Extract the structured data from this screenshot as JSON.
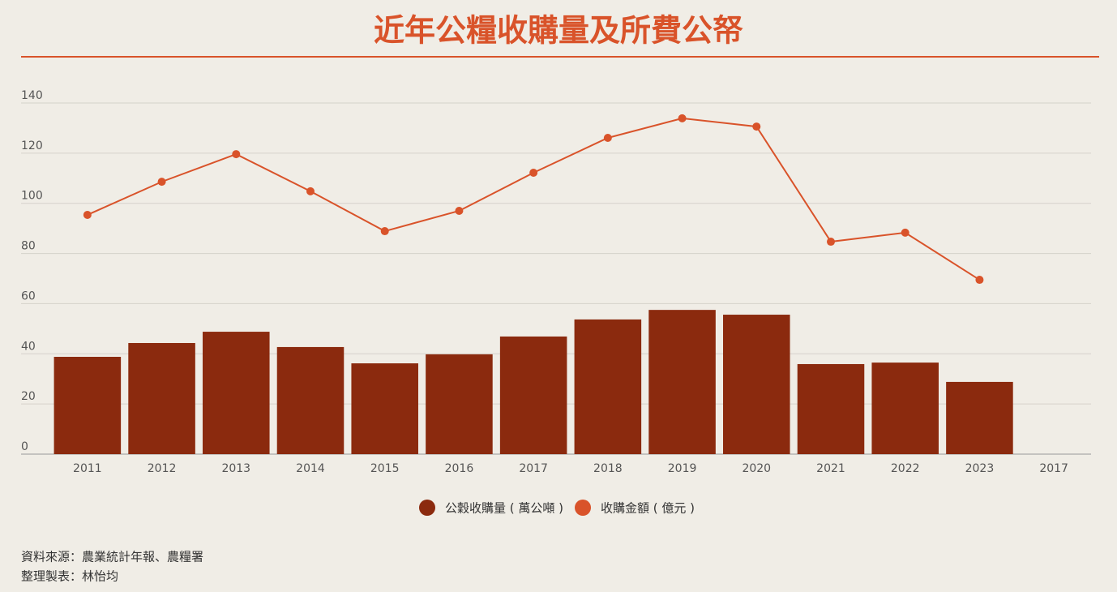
{
  "chart_data": {
    "type": "bar-line",
    "title": "近年公糧收購量及所費公帑",
    "categories": [
      "2011",
      "2012",
      "2013",
      "2014",
      "2015",
      "2016",
      "2017",
      "2018",
      "2019",
      "2020",
      "2021",
      "2022",
      "2023",
      "2017"
    ],
    "series": [
      {
        "name": "公穀收購量 ( 萬公噸 )",
        "type": "bar",
        "color": "#8b2a0e",
        "values": [
          38.8,
          44.3,
          48.8,
          42.7,
          36.2,
          39.8,
          46.9,
          53.7,
          57.5,
          55.6,
          35.9,
          36.5,
          28.8,
          null
        ]
      },
      {
        "name": "收購金額 ( 億元 )",
        "type": "line",
        "color": "#d9532a",
        "values": [
          95.4,
          108.6,
          119.6,
          104.8,
          88.9,
          97.0,
          112.2,
          126.1,
          133.9,
          130.6,
          84.7,
          88.3,
          69.5,
          null
        ]
      }
    ],
    "ylim": [
      0,
      140
    ],
    "yticks": [
      0,
      20,
      40,
      60,
      80,
      100,
      120,
      140
    ],
    "grid": true,
    "legend": "bottom",
    "notes": [
      "資料來源：農業統計年報、農糧署",
      "整理製表：林怡均"
    ]
  }
}
